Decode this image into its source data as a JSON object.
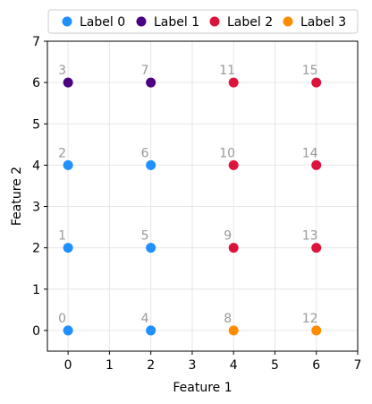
{
  "chart_data": {
    "type": "scatter",
    "xlabel": "Feature 1",
    "ylabel": "Feature 2",
    "xlim": [
      -0.5,
      7
    ],
    "ylim": [
      -0.5,
      7
    ],
    "xticks": [
      0,
      1,
      2,
      3,
      4,
      5,
      6,
      7
    ],
    "yticks": [
      0,
      1,
      2,
      3,
      4,
      5,
      6,
      7
    ],
    "grid": true,
    "legend_position": "top",
    "series": [
      {
        "name": "Label 0",
        "color": "#1E90FF",
        "points": [
          {
            "x": 0,
            "y": 0,
            "label": "0"
          },
          {
            "x": 0,
            "y": 2,
            "label": "1"
          },
          {
            "x": 0,
            "y": 4,
            "label": "2"
          },
          {
            "x": 2,
            "y": 0,
            "label": "4"
          },
          {
            "x": 2,
            "y": 2,
            "label": "5"
          },
          {
            "x": 2,
            "y": 4,
            "label": "6"
          }
        ]
      },
      {
        "name": "Label 1",
        "color": "#4B0082",
        "points": [
          {
            "x": 0,
            "y": 6,
            "label": "3"
          },
          {
            "x": 2,
            "y": 6,
            "label": "7"
          }
        ]
      },
      {
        "name": "Label 2",
        "color": "#DC143C",
        "points": [
          {
            "x": 4,
            "y": 2,
            "label": "9"
          },
          {
            "x": 4,
            "y": 4,
            "label": "10"
          },
          {
            "x": 4,
            "y": 6,
            "label": "11"
          },
          {
            "x": 6,
            "y": 2,
            "label": "13"
          },
          {
            "x": 6,
            "y": 4,
            "label": "14"
          },
          {
            "x": 6,
            "y": 6,
            "label": "15"
          }
        ]
      },
      {
        "name": "Label 3",
        "color": "#FF8C00",
        "points": [
          {
            "x": 4,
            "y": 0,
            "label": "8"
          },
          {
            "x": 6,
            "y": 0,
            "label": "12"
          }
        ]
      }
    ]
  }
}
